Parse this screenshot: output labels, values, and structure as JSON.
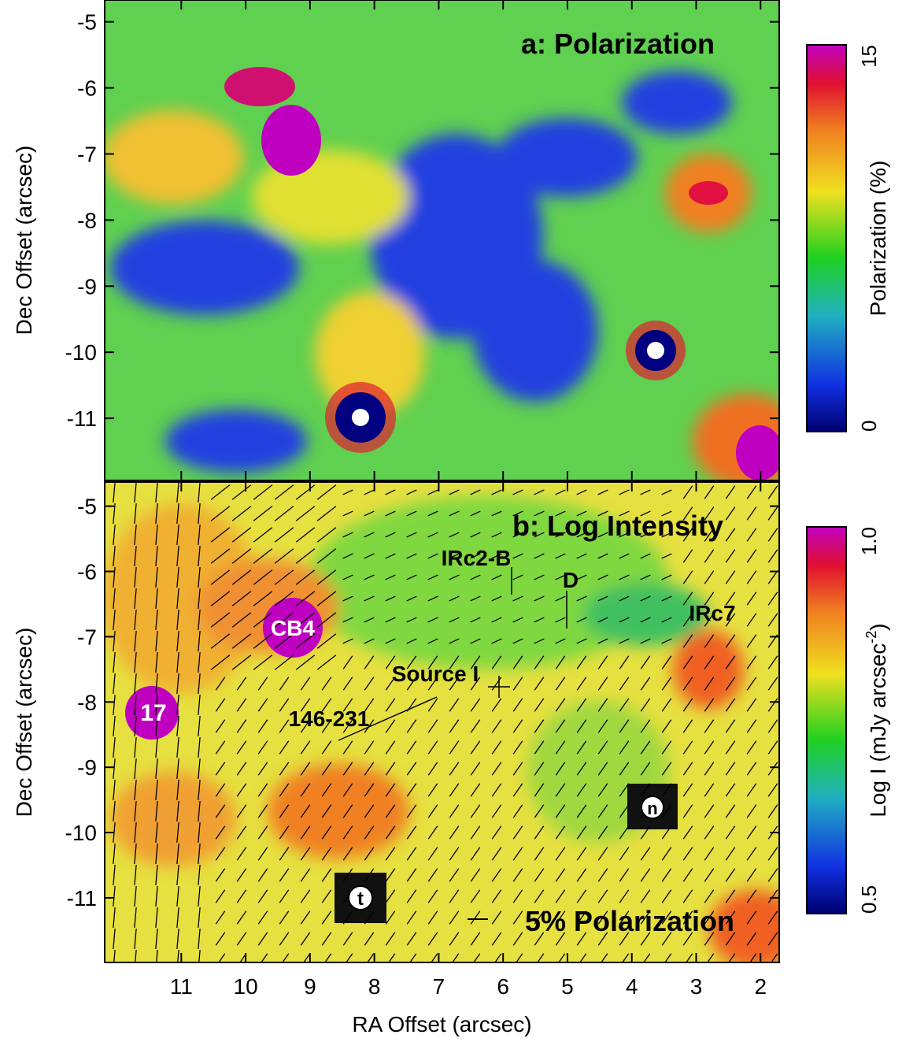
{
  "chart_data": [
    {
      "type": "image",
      "title": "a: Polarization",
      "ylabel": "Dec Offset (arcsec)",
      "xlim": [
        12.19,
        1.71
      ],
      "ylim": [
        -11.94,
        -4.67
      ],
      "yticks": [
        -11,
        -10,
        -9,
        -8,
        -7,
        -6,
        -5
      ],
      "colorbar": {
        "label": [
          "Polarization (%)"
        ],
        "lim": [
          0,
          15
        ],
        "ticks": [
          0,
          15
        ]
      }
    },
    {
      "type": "image",
      "title": "b: Log Intensity",
      "xlabel": "RA Offset (arcsec)",
      "ylabel": "Dec Offset (arcsec)",
      "xlim": [
        12.19,
        1.71
      ],
      "ylim": [
        -11.99,
        -4.63
      ],
      "xticks": [
        11,
        10,
        9,
        8,
        7,
        6,
        5,
        4,
        3,
        2
      ],
      "yticks": [
        -11,
        -10,
        -9,
        -8,
        -7,
        -6,
        -5
      ],
      "colorbar": {
        "label": [
          "Log I (mJy arcsec",
          "-2",
          ")"
        ],
        "lim": [
          0.5,
          1.0
        ],
        "ticks": [
          0.5,
          {
            "value": 1.0,
            "label": "1.0"
          }
        ]
      },
      "annotations": [
        "IRc2-B",
        "D",
        "IRc7",
        "CB4",
        "Source I",
        "146-231",
        "17",
        "5% Polarization",
        "n",
        "t"
      ]
    }
  ]
}
